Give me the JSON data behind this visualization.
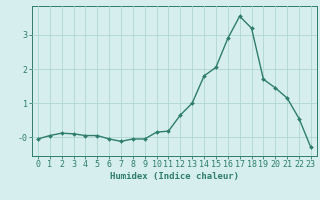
{
  "x": [
    0,
    1,
    2,
    3,
    4,
    5,
    6,
    7,
    8,
    9,
    10,
    11,
    12,
    13,
    14,
    15,
    16,
    17,
    18,
    19,
    20,
    21,
    22,
    23
  ],
  "y": [
    -0.05,
    0.05,
    0.12,
    0.1,
    0.05,
    0.05,
    -0.05,
    -0.12,
    -0.05,
    -0.05,
    0.15,
    0.18,
    0.65,
    1.0,
    1.8,
    2.05,
    2.9,
    3.55,
    3.2,
    1.7,
    1.45,
    1.15,
    0.55,
    -0.3
  ],
  "line_color": "#2e7d6e",
  "marker_color": "#2e7d6e",
  "bg_color": "#d6efee",
  "grid_color": "#aed5d3",
  "axis_color": "#2e7d6e",
  "xlabel": "Humidex (Indice chaleur)",
  "xlabel_fontsize": 6.5,
  "tick_fontsize": 6,
  "yticks": [
    0,
    1,
    2,
    3
  ],
  "ytick_labels": [
    "-0",
    "1",
    "2",
    "3"
  ],
  "ylim": [
    -0.55,
    3.85
  ],
  "xlim": [
    -0.5,
    23.5
  ]
}
